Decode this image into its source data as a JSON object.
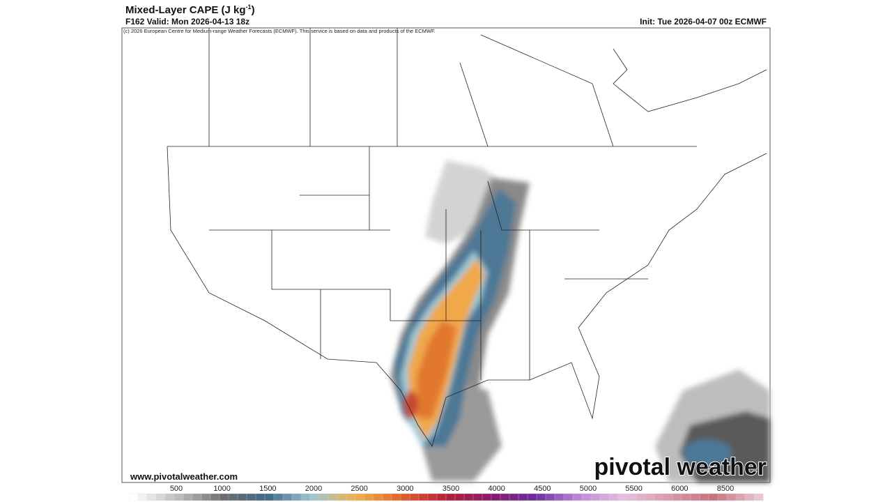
{
  "header": {
    "title": "Mixed-Layer CAPE (J kg",
    "title_superscript": "-1",
    "title_end": ")",
    "valid": "F162 Valid: Mon 2026-04-13 18z",
    "init": "Init: Tue 2026-04-07 00z ECMWF",
    "copyright": "(c) 2026 European Centre for Medium-range Weather Forecasts (ECMWF). This service is based on data and products of the ECMWF."
  },
  "map": {
    "website": "www.pivotalweather.com",
    "watermark": "pivotal weather"
  },
  "colorbar": {
    "labels": [
      "500",
      "1000",
      "1500",
      "2000",
      "2500",
      "3000",
      "3500",
      "4000",
      "4500",
      "5000",
      "5500",
      "6000",
      "8500"
    ],
    "colors": [
      "#ffffff",
      "#bdbdbd",
      "#6e6e6e",
      "#3f6a8a",
      "#9ec6d4",
      "#f0b04a",
      "#e0622a",
      "#b5203a",
      "#8a1a6a",
      "#6b2fa0",
      "#c08ad8",
      "#e6c0e0",
      "#d89aa8",
      "#c87080",
      "#e8c8d0"
    ]
  }
}
